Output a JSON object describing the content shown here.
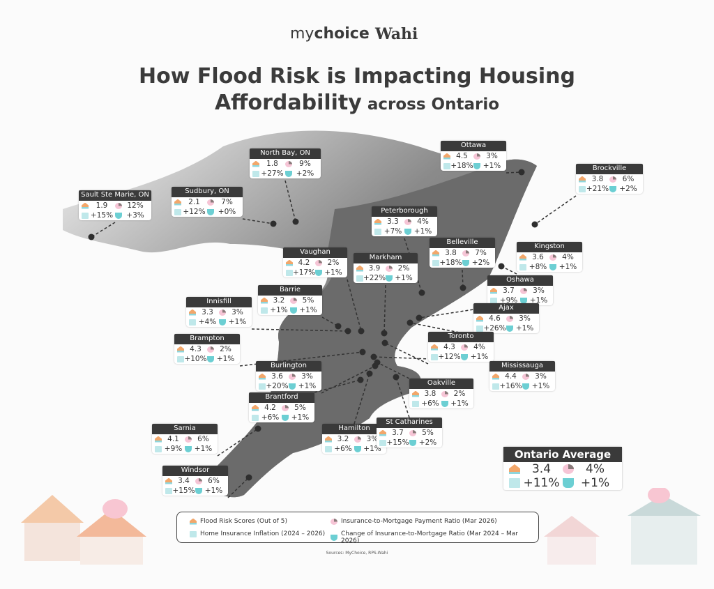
{
  "header": {
    "logo_mychoice_light": "my",
    "logo_mychoice_bold": "choice",
    "logo_wahi": "Wahi",
    "title_line1": "How Flood Risk is Impacting Housing",
    "title_line2_bold": "Affordability",
    "title_line2_rest": " across Ontario"
  },
  "colors": {
    "flood": "#f2a76b",
    "ratio": "#f6c5d6",
    "inflation": "#bfe8ea",
    "change": "#6ccfd3",
    "map": "#6b6b6b",
    "label_bg": "#3a3a3a"
  },
  "cities": [
    {
      "name": "North Bay, ON",
      "flood": "1.8",
      "ratio": "9%",
      "inflation": "+27%",
      "change": "+2%"
    },
    {
      "name": "Ottawa",
      "flood": "4.5",
      "ratio": "3%",
      "inflation": "+18%",
      "change": "+1%"
    },
    {
      "name": "Brockville",
      "flood": "3.8",
      "ratio": "6%",
      "inflation": "+21%",
      "change": "+2%"
    },
    {
      "name": "Sault Ste Marie, ON",
      "flood": "1.9",
      "ratio": "12%",
      "inflation": "+15%",
      "change": "+3%"
    },
    {
      "name": "Sudbury, ON",
      "flood": "2.1",
      "ratio": "7%",
      "inflation": "+12%",
      "change": "+0%"
    },
    {
      "name": "Peterborough",
      "flood": "3.3",
      "ratio": "4%",
      "inflation": "+7%",
      "change": "+1%"
    },
    {
      "name": "Vaughan",
      "flood": "4.2",
      "ratio": "2%",
      "inflation": "+17%",
      "change": "+1%"
    },
    {
      "name": "Markham",
      "flood": "3.9",
      "ratio": "2%",
      "inflation": "+22%",
      "change": "+1%"
    },
    {
      "name": "Belleville",
      "flood": "3.8",
      "ratio": "7%",
      "inflation": "+18%",
      "change": "+2%"
    },
    {
      "name": "Kingston",
      "flood": "3.6",
      "ratio": "4%",
      "inflation": "+8%",
      "change": "+1%"
    },
    {
      "name": "Oshawa",
      "flood": "3.7",
      "ratio": "3%",
      "inflation": "+9%",
      "change": "+1%"
    },
    {
      "name": "Barrie",
      "flood": "3.2",
      "ratio": "5%",
      "inflation": "+1%",
      "change": "+1%"
    },
    {
      "name": "Innisfill",
      "flood": "3.3",
      "ratio": "3%",
      "inflation": "+4%",
      "change": "+1%"
    },
    {
      "name": "Ajax",
      "flood": "4.6",
      "ratio": "3%",
      "inflation": "+26%",
      "change": "+1%"
    },
    {
      "name": "Brampton",
      "flood": "4.3",
      "ratio": "2%",
      "inflation": "+10%",
      "change": "+1%"
    },
    {
      "name": "Toronto",
      "flood": "4.3",
      "ratio": "4%",
      "inflation": "+12%",
      "change": "+1%"
    },
    {
      "name": "Mississauga",
      "flood": "4.4",
      "ratio": "3%",
      "inflation": "+16%",
      "change": "+1%"
    },
    {
      "name": "Burlington",
      "flood": "3.6",
      "ratio": "3%",
      "inflation": "+20%",
      "change": "+1%"
    },
    {
      "name": "Oakville",
      "flood": "3.8",
      "ratio": "2%",
      "inflation": "+6%",
      "change": "+1%"
    },
    {
      "name": "Brantford",
      "flood": "4.2",
      "ratio": "5%",
      "inflation": "+6%",
      "change": "+1%"
    },
    {
      "name": "Hamilton",
      "flood": "3.2",
      "ratio": "3%",
      "inflation": "+6%",
      "change": "+1%"
    },
    {
      "name": "St Catharines",
      "flood": "3.7",
      "ratio": "5%",
      "inflation": "+15%",
      "change": "+2%"
    },
    {
      "name": "Sarnia",
      "flood": "4.1",
      "ratio": "6%",
      "inflation": "+9%",
      "change": "+1%"
    },
    {
      "name": "Windsor",
      "flood": "3.4",
      "ratio": "6%",
      "inflation": "+15%",
      "change": "+1%"
    }
  ],
  "average": {
    "title": "Ontario Average",
    "flood": "3.4",
    "ratio": "4%",
    "inflation": "+11%",
    "change": "+1%"
  },
  "legend": {
    "flood": "Flood Risk Scores (Out of 5)",
    "ratio": "Insurance-to-Mortgage Payment Ratio (Mar 2026)",
    "inflation": "Home Insurance Inflation (2024 – 2026)",
    "change": "Change of Insurance-to-Mortgage Ratio (Mar 2024 – Mar 2026)"
  },
  "sources": "Sources: MyChoice, RPS-Wahi"
}
